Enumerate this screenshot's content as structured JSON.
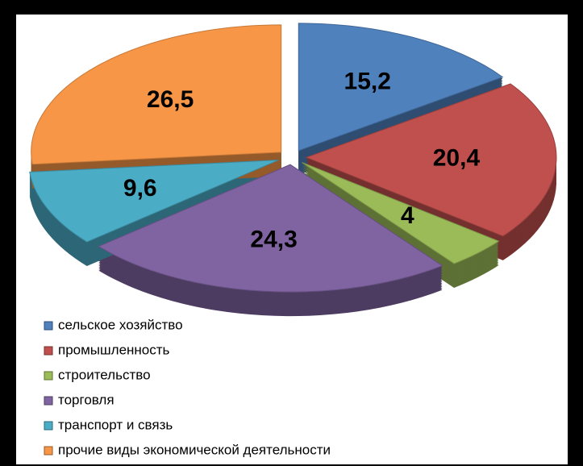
{
  "chart_data": {
    "type": "pie",
    "categories": [
      "сельское хозяйство",
      "промышленность",
      "строительство",
      "торговля",
      "транспорт и связь",
      "прочие виды экономической деятельности"
    ],
    "values": [
      15.2,
      20.4,
      4,
      24.3,
      9.6,
      26.5
    ],
    "value_labels": [
      "15,2",
      "20,4",
      "4",
      "24,3",
      "9,6",
      "26,5"
    ],
    "colors": [
      "#4f81bd",
      "#c0504d",
      "#9bbb59",
      "#8064a2",
      "#4bacc6",
      "#f79646"
    ]
  }
}
